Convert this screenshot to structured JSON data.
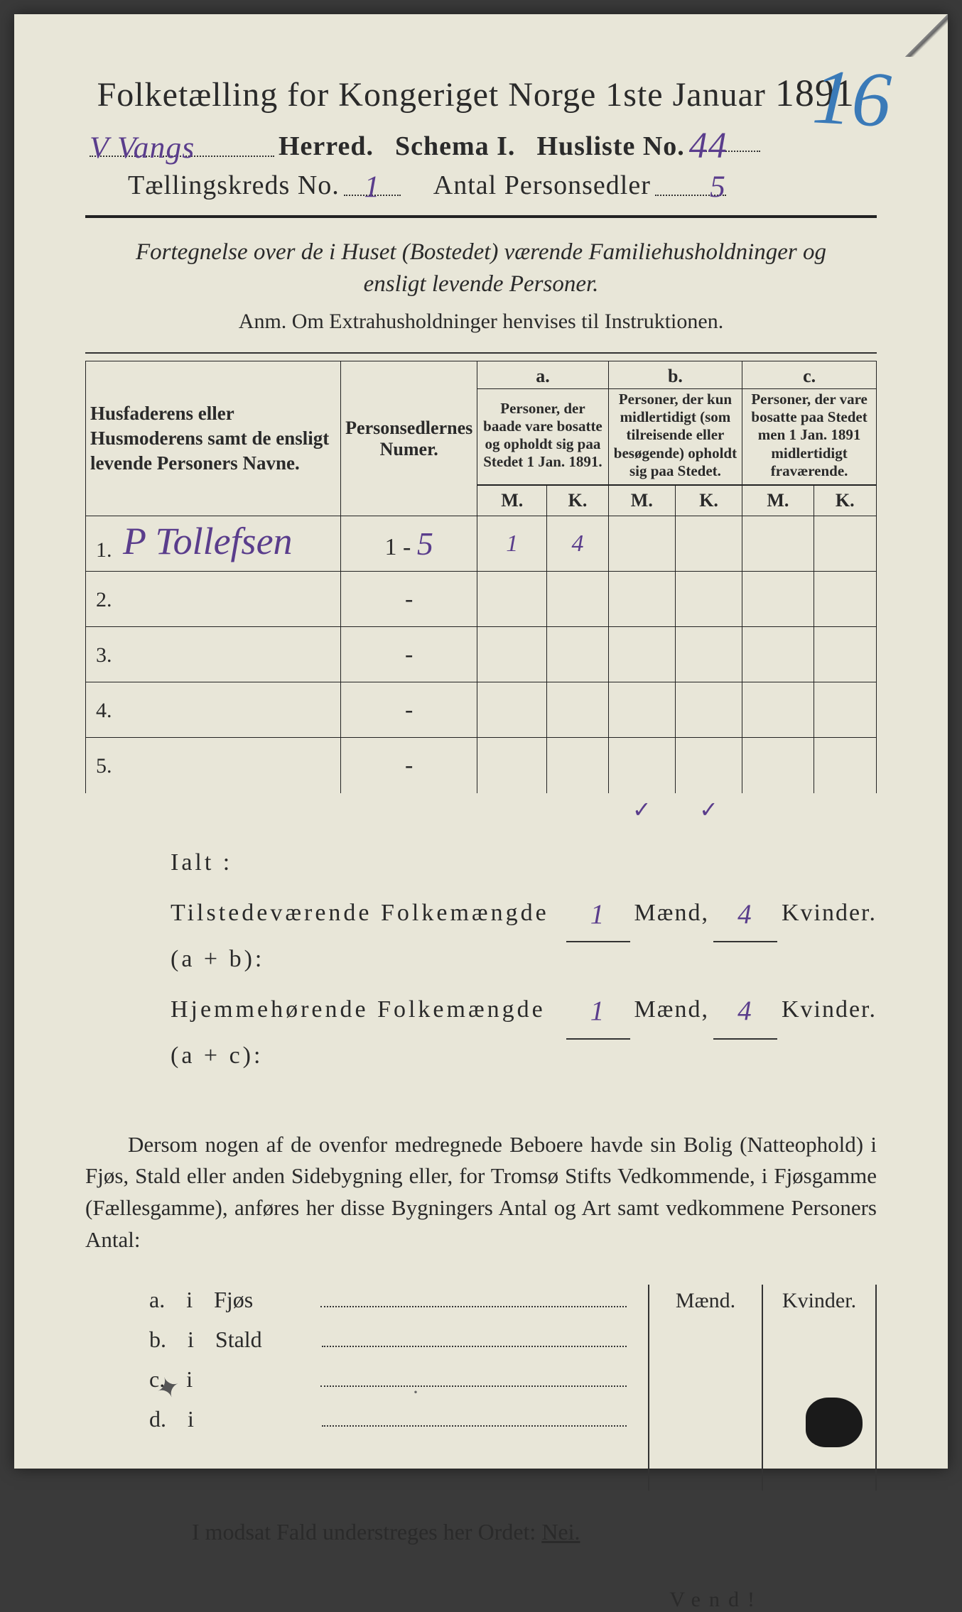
{
  "crayon_corner": "16",
  "title": {
    "pre": "Folketælling for Kongeriget Norge 1ste Januar",
    "year": "1891."
  },
  "line2": {
    "herred_value": "V Vangs",
    "herred_label": "Herred.",
    "schema_label": "Schema I.",
    "husliste_label": "Husliste No.",
    "husliste_value": "44"
  },
  "line3": {
    "kreds_label": "Tællingskreds No.",
    "kreds_value": "1",
    "antal_label": "Antal Personsedler",
    "antal_value": "5"
  },
  "subtitle": "Fortegnelse over de i Huset (Bostedet) værende Familiehusholdninger og ensligt levende Personer.",
  "anm": "Anm.   Om Extrahusholdninger henvises til Instruktionen.",
  "table": {
    "col_name": "Husfaderens eller Husmoderens samt de ensligt levende Personers Navne.",
    "col_num": "Personsedlernes Numer.",
    "a": {
      "letter": "a.",
      "desc": "Personer, der baade vare bosatte og opholdt sig paa Stedet 1 Jan. 1891."
    },
    "b": {
      "letter": "b.",
      "desc": "Personer, der kun midlertidigt (som tilreisende eller besøgende) opholdt sig paa Stedet."
    },
    "c": {
      "letter": "c.",
      "desc": "Personer, der vare bosatte paa Stedet men 1 Jan. 1891 midlertidigt fraværende."
    },
    "m": "M.",
    "k": "K.",
    "rows": [
      {
        "n": "1.",
        "name": "P Tollefsen",
        "num": "1 - 5",
        "am": "1",
        "ak": "4",
        "bm": "",
        "bk": "",
        "cm": "",
        "ck": ""
      },
      {
        "n": "2.",
        "name": "",
        "num": "-",
        "am": "",
        "ak": "",
        "bm": "",
        "bk": "",
        "cm": "",
        "ck": ""
      },
      {
        "n": "3.",
        "name": "",
        "num": "-",
        "am": "",
        "ak": "",
        "bm": "",
        "bk": "",
        "cm": "",
        "ck": ""
      },
      {
        "n": "4.",
        "name": "",
        "num": "-",
        "am": "",
        "ak": "",
        "bm": "",
        "bk": "",
        "cm": "",
        "ck": ""
      },
      {
        "n": "5.",
        "name": "",
        "num": "-",
        "am": "",
        "ak": "",
        "bm": "",
        "bk": "",
        "cm": "",
        "ck": ""
      }
    ],
    "check_bm": "✓",
    "check_bk": "✓"
  },
  "ialt": "Ialt :",
  "summary": {
    "l1_label": "Tilstedeværende Folkemængde (a + b):",
    "l2_label": "Hjemmehørende Folkemængde (a + c):",
    "maend": "Mænd,",
    "kvinder": "Kvinder.",
    "l1_m": "1",
    "l1_k": "4",
    "l2_m": "1",
    "l2_k": "4"
  },
  "para": "Dersom nogen af de ovenfor medregnede Beboere havde sin Bolig (Natteophold) i Fjøs, Stald eller anden Sidebygning eller, for Tromsø Stifts Vedkommende, i Fjøsgamme (Fællesgamme), anføres her disse Bygningers Antal og Art samt vedkommene Personers Antal:",
  "bld": {
    "head_m": "Mænd.",
    "head_k": "Kvinder.",
    "rows": [
      {
        "l": "a.",
        "i": "i",
        "t": "Fjøs"
      },
      {
        "l": "b.",
        "i": "i",
        "t": "Stald"
      },
      {
        "l": "c.",
        "i": "i",
        "t": ""
      },
      {
        "l": "d.",
        "i": "i",
        "t": ""
      }
    ]
  },
  "nei": {
    "pre": "I modsat Fald understreges her Ordet: ",
    "word": "Nei."
  },
  "vend": "Vend!",
  "colors": {
    "paper": "#e8e6d8",
    "ink": "#2a2a2a",
    "handwriting": "#5a3d8c",
    "crayon": "#3a7ab8"
  }
}
